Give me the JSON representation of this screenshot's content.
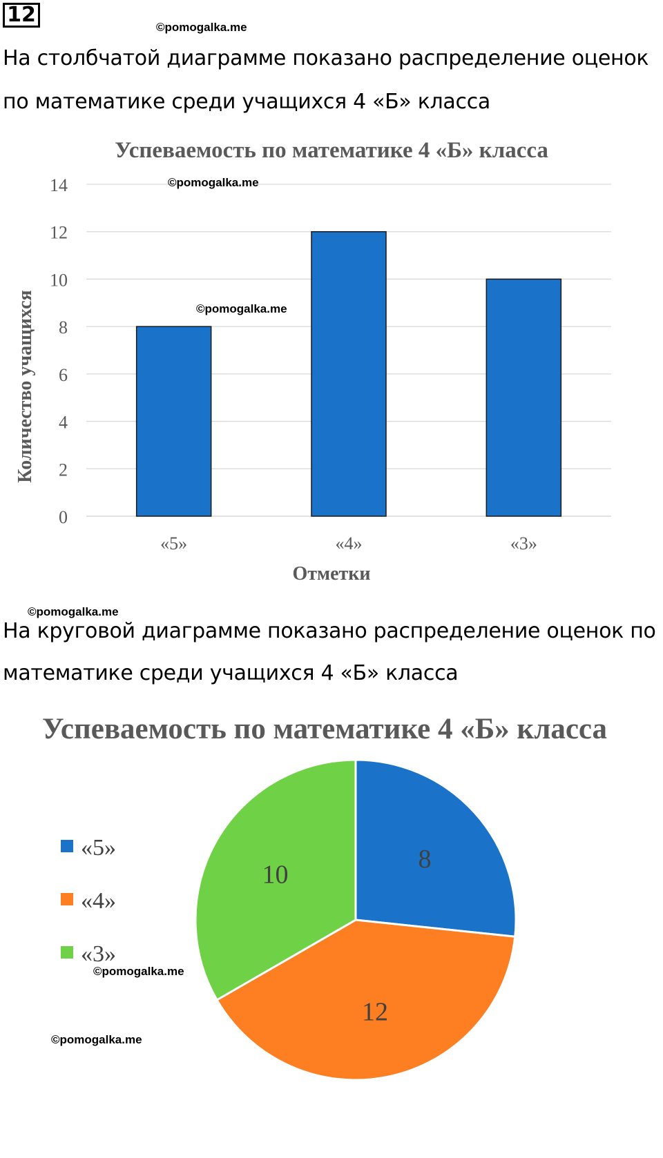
{
  "problem_number": "12",
  "watermark": "©pomogalka.me",
  "paragraph1": {
    "line1": "На столбчатой диаграмме показано распределение оценок",
    "line2": "по математике среди учащихся 4 «Б» класса"
  },
  "paragraph2": {
    "line1": "На круговой диаграмме показано распределение оценок по",
    "line2": "математике среди учащихся 4 «Б» класса"
  },
  "chart_data": [
    {
      "type": "bar",
      "title": "Успеваемость по математике 4 «Б» класса",
      "xlabel": "Отметки",
      "ylabel": "Количество учащихся",
      "categories": [
        "«5»",
        "«4»",
        "«3»"
      ],
      "values": [
        8,
        12,
        10
      ],
      "ylim": [
        0,
        14
      ],
      "yticks": [
        0,
        2,
        4,
        6,
        8,
        10,
        12,
        14
      ],
      "grid": true,
      "bar_color": "#1a73c9"
    },
    {
      "type": "pie",
      "title": "Успеваемость по математике 4 «Б» класса",
      "categories": [
        "«5»",
        "«4»",
        "«3»"
      ],
      "values": [
        8,
        12,
        10
      ],
      "colors": [
        "#1a73c9",
        "#fd7f22",
        "#6fd246"
      ],
      "legend": "left"
    }
  ]
}
